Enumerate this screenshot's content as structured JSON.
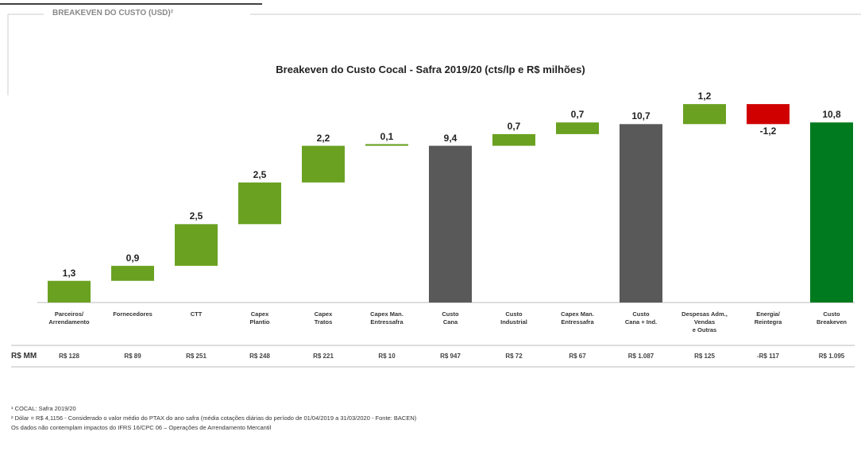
{
  "header": "BREAKEVEN DO CUSTO (USD)²",
  "chart_data": {
    "type": "waterfall",
    "title": "Breakeven do Custo Cocal - Safra 2019/20 (cts/lp e R$ milhões)",
    "categories": [
      "Parceiros/\nArrendamento",
      "Fornecedores",
      "CTT",
      "Capex\nPlantio",
      "Capex\nTratos",
      "Capex Man.\nEntressafra",
      "Custo\nCana",
      "Custo\nIndustrial",
      "Capex Man.\nEntressafra",
      "Custo\nCana + Ind.",
      "Despesas Adm.,\nVendas\ne Outras",
      "Energia/\nReintegra",
      "Custo\nBreakeven"
    ],
    "values": [
      1.3,
      0.9,
      2.5,
      2.5,
      2.2,
      0.1,
      9.4,
      0.7,
      0.7,
      10.7,
      1.2,
      -1.2,
      10.8
    ],
    "value_labels": [
      "1,3",
      "0,9",
      "2,5",
      "2,5",
      "2,2",
      "0,1",
      "9,4",
      "0,7",
      "0,7",
      "10,7",
      "1,2",
      "-1,2",
      "10,8"
    ],
    "totals": [
      false,
      false,
      false,
      false,
      false,
      false,
      true,
      false,
      false,
      true,
      false,
      false,
      true
    ],
    "colors": [
      "#6aa121",
      "#6aa121",
      "#6aa121",
      "#6aa121",
      "#6aa121",
      "#6aa121",
      "#595959",
      "#6aa121",
      "#6aa121",
      "#595959",
      "#6aa121",
      "#d00000",
      "#007a1e"
    ],
    "row_label": "R$ MM",
    "row_values": [
      "R$ 128",
      "R$ 89",
      "R$ 251",
      "R$ 248",
      "R$ 221",
      "R$ 10",
      "R$ 947",
      "R$ 72",
      "R$ 67",
      "R$ 1.087",
      "R$ 125",
      "-R$ 117",
      "R$ 1.095"
    ]
  },
  "footnotes": [
    "¹ COCAL: Safra 2019/20",
    "² Dólar = R$ 4,1156 - Considerado o valor médio do PTAX do ano safra (média cotações diárias do período de 01/04/2019 a 31/03/2020 - Fonte: BACEN)",
    "Os dados não contemplam impactos do IFRS 16/CPC 06 – Operações de Arrendamento Mercantil"
  ]
}
